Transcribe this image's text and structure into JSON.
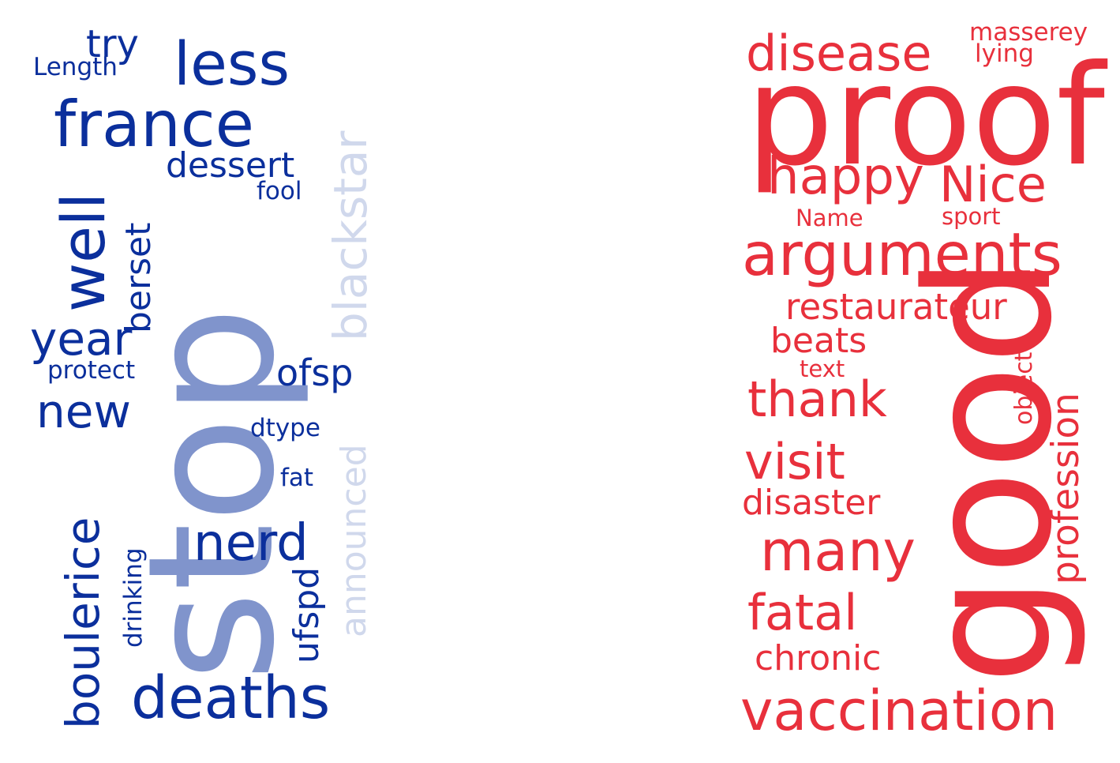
{
  "left_cloud": {
    "palette": {
      "dark": "#0b2f9c",
      "mid": "#8094cc",
      "light": "#d0d8ec"
    },
    "words": [
      {
        "text": "stop",
        "tone": "mid"
      },
      {
        "text": "france",
        "tone": "dark"
      },
      {
        "text": "deaths",
        "tone": "dark"
      },
      {
        "text": "less",
        "tone": "dark"
      },
      {
        "text": "well",
        "tone": "dark"
      },
      {
        "text": "boulerice",
        "tone": "dark"
      },
      {
        "text": "year",
        "tone": "dark"
      },
      {
        "text": "new",
        "tone": "dark"
      },
      {
        "text": "nerd",
        "tone": "dark"
      },
      {
        "text": "blackstar",
        "tone": "light"
      },
      {
        "text": "announced",
        "tone": "light"
      },
      {
        "text": "dessert",
        "tone": "dark"
      },
      {
        "text": "ofsp",
        "tone": "dark"
      },
      {
        "text": "berset",
        "tone": "dark"
      },
      {
        "text": "ufspd",
        "tone": "dark"
      },
      {
        "text": "try",
        "tone": "dark"
      },
      {
        "text": "Length",
        "tone": "dark"
      },
      {
        "text": "fool",
        "tone": "dark"
      },
      {
        "text": "protect",
        "tone": "dark"
      },
      {
        "text": "dtype",
        "tone": "dark"
      },
      {
        "text": "fat",
        "tone": "dark"
      },
      {
        "text": "drinking",
        "tone": "dark"
      }
    ]
  },
  "right_cloud": {
    "color": "#e8303c",
    "words": [
      "proof",
      "good",
      "arguments",
      "vaccination",
      "disease",
      "happy",
      "Nice",
      "many",
      "fatal",
      "thank",
      "visit",
      "restaurateur",
      "disaster",
      "chronic",
      "profession",
      "beats",
      "masserey",
      "lying",
      "Name",
      "sport",
      "text",
      "object"
    ]
  }
}
